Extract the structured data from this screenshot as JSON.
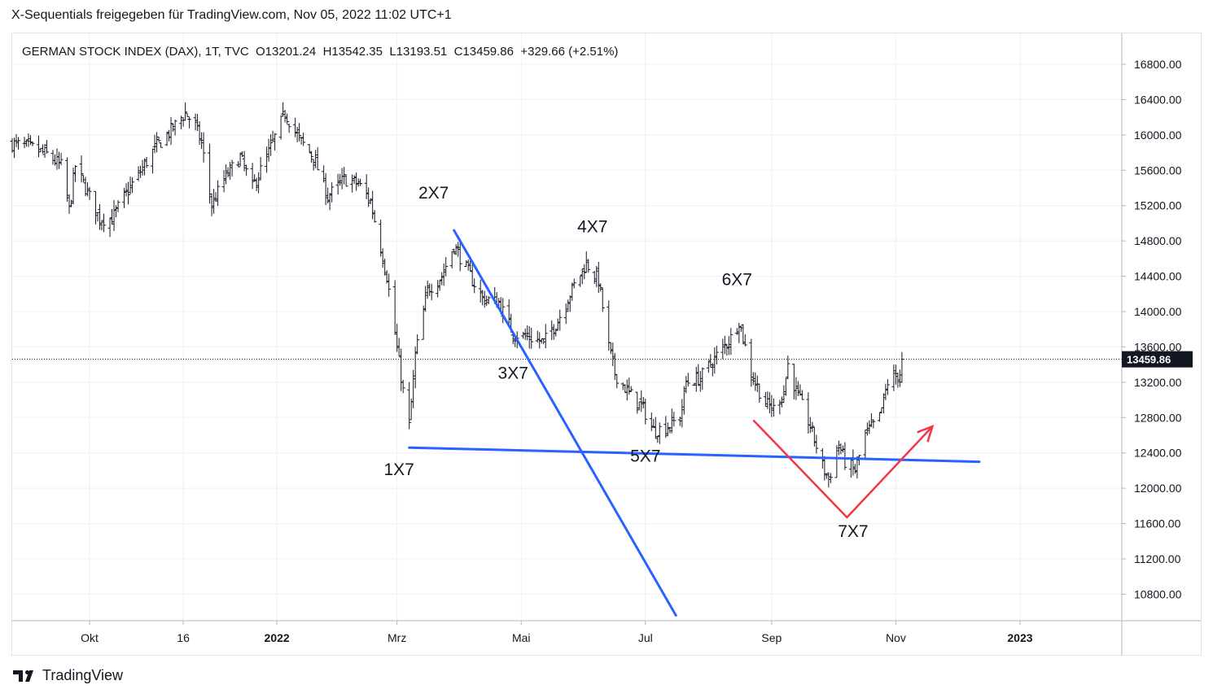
{
  "header": {
    "caption": "X-Sequentials freigegeben für TradingView.com, Nov 05, 2022 11:02 UTC+1"
  },
  "legend": {
    "symbol": "GERMAN STOCK INDEX (DAX), 1T, TVC",
    "open": "O13201.24",
    "high": "H13542.35",
    "low": "L13193.51",
    "close": "C13459.86",
    "change": "+329.66 (+2.51%)"
  },
  "footer": {
    "brand": "TradingView",
    "logo_icon": "tradingview-logo-icon"
  },
  "colors": {
    "bars": "#131722",
    "trendline": "#2962ff",
    "arrow": "#f23645",
    "badge": "#131722",
    "grid": "#eef0f3"
  },
  "chart_data": {
    "type": "ohlc",
    "y_axis": {
      "range": [
        10500,
        17150
      ],
      "ticks": [
        10800,
        11200,
        11600,
        12000,
        12400,
        12800,
        13200,
        13600,
        14000,
        14400,
        14800,
        15200,
        15600,
        16000,
        16400,
        16800
      ],
      "tick_labels": [
        "10800.00",
        "11200.00",
        "11600.00",
        "12000.00",
        "12400.00",
        "12800.00",
        "13200.00",
        "13600.00",
        "14000.00",
        "14400.00",
        "14800.00",
        "15200.00",
        "15600.00",
        "16000.00",
        "16400.00",
        "16800.00"
      ]
    },
    "x_axis": {
      "range": [
        "2021-08-24",
        "2023-02-20"
      ],
      "ticks": [
        "2021-10-01",
        "2021-11-16",
        "2022-01-01",
        "2022-03-01",
        "2022-05-01",
        "2022-07-01",
        "2022-09-01",
        "2022-11-01",
        "2023-01-01"
      ],
      "tick_labels": [
        "Okt",
        "16",
        "2022",
        "Mrz",
        "Mai",
        "Jul",
        "Sep",
        "Nov",
        "2023"
      ]
    },
    "last_price": {
      "value": 13459.86,
      "label": "13459.86"
    },
    "price_path": [
      [
        "2021-08-24",
        15900
      ],
      [
        "2021-09-03",
        15850
      ],
      [
        "2021-09-10",
        15780
      ],
      [
        "2021-09-17",
        15650
      ],
      [
        "2021-09-21",
        15150
      ],
      [
        "2021-09-24",
        15650
      ],
      [
        "2021-09-30",
        15350
      ],
      [
        "2021-10-06",
        15050
      ],
      [
        "2021-10-12",
        15050
      ],
      [
        "2021-10-18",
        15300
      ],
      [
        "2021-10-25",
        15550
      ],
      [
        "2021-11-02",
        15850
      ],
      [
        "2021-11-10",
        16050
      ],
      [
        "2021-11-17",
        16250
      ],
      [
        "2021-11-22",
        16100
      ],
      [
        "2021-11-25",
        15900
      ],
      [
        "2021-11-30",
        15200
      ],
      [
        "2021-12-06",
        15500
      ],
      [
        "2021-12-14",
        15750
      ],
      [
        "2021-12-20",
        15400
      ],
      [
        "2021-12-27",
        15750
      ],
      [
        "2022-01-05",
        16250
      ],
      [
        "2022-01-12",
        15950
      ],
      [
        "2022-01-19",
        15750
      ],
      [
        "2022-01-26",
        15300
      ],
      [
        "2022-02-03",
        15500
      ],
      [
        "2022-02-10",
        15450
      ],
      [
        "2022-02-16",
        15250
      ],
      [
        "2022-02-24",
        14400
      ],
      [
        "2022-03-04",
        13100
      ],
      [
        "2022-03-07",
        12700
      ],
      [
        "2022-03-10",
        13500
      ],
      [
        "2022-03-16",
        14250
      ],
      [
        "2022-03-23",
        14400
      ],
      [
        "2022-03-29",
        14750
      ],
      [
        "2022-04-06",
        14400
      ],
      [
        "2022-04-12",
        14150
      ],
      [
        "2022-04-20",
        14100
      ],
      [
        "2022-04-27",
        13750
      ],
      [
        "2022-05-06",
        13700
      ],
      [
        "2022-05-12",
        13650
      ],
      [
        "2022-05-19",
        13900
      ],
      [
        "2022-05-26",
        14250
      ],
      [
        "2022-06-02",
        14550
      ],
      [
        "2022-06-08",
        14350
      ],
      [
        "2022-06-13",
        13600
      ],
      [
        "2022-06-16",
        13300
      ],
      [
        "2022-06-22",
        13100
      ],
      [
        "2022-06-30",
        12900
      ],
      [
        "2022-07-05",
        12650
      ],
      [
        "2022-07-12",
        12700
      ],
      [
        "2022-07-18",
        12800
      ],
      [
        "2022-07-21",
        13200
      ],
      [
        "2022-07-28",
        13250
      ],
      [
        "2022-08-05",
        13500
      ],
      [
        "2022-08-12",
        13700
      ],
      [
        "2022-08-16",
        13900
      ],
      [
        "2022-08-22",
        13300
      ],
      [
        "2022-08-29",
        12950
      ],
      [
        "2022-09-02",
        12900
      ],
      [
        "2022-09-07",
        13100
      ],
      [
        "2022-09-09",
        13400
      ],
      [
        "2022-09-13",
        13100
      ],
      [
        "2022-09-20",
        12700
      ],
      [
        "2022-09-26",
        12250
      ],
      [
        "2022-09-29",
        12100
      ],
      [
        "2022-10-04",
        12500
      ],
      [
        "2022-10-07",
        12300
      ],
      [
        "2022-10-12",
        12200
      ],
      [
        "2022-10-17",
        12600
      ],
      [
        "2022-10-24",
        12800
      ],
      [
        "2022-10-28",
        13200
      ],
      [
        "2022-11-03",
        13300
      ],
      [
        "2022-11-04",
        13459.86
      ]
    ],
    "annotations": {
      "labels": [
        {
          "text": "1X7",
          "date": "2022-03-02",
          "price": 12150
        },
        {
          "text": "2X7",
          "date": "2022-03-19",
          "price": 15280
        },
        {
          "text": "3X7",
          "date": "2022-04-27",
          "price": 13240
        },
        {
          "text": "4X7",
          "date": "2022-06-05",
          "price": 14900
        },
        {
          "text": "5X7",
          "date": "2022-07-01",
          "price": 12300
        },
        {
          "text": "6X7",
          "date": "2022-08-15",
          "price": 14300
        },
        {
          "text": "7X7",
          "date": "2022-10-11",
          "price": 11450
        }
      ],
      "trendlines": [
        {
          "name": "support-trendline",
          "from": [
            "2022-03-07",
            12460
          ],
          "to": [
            "2022-12-12",
            12300
          ]
        },
        {
          "name": "resistance-trendline",
          "from": [
            "2022-03-29",
            14920
          ],
          "to": [
            "2022-07-16",
            10560
          ]
        }
      ],
      "reversal_arrow": {
        "points": [
          [
            "2022-08-23",
            12770
          ],
          [
            "2022-10-08",
            11670
          ],
          [
            "2022-11-19",
            12700
          ]
        ]
      }
    }
  }
}
